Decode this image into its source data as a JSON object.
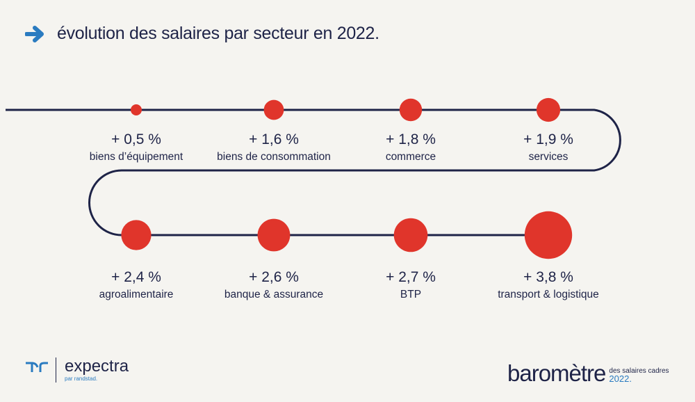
{
  "chart_data": {
    "type": "bubble-timeline",
    "title": "évolution des salaires par secteur en 2022.",
    "unit": "%",
    "categories": [
      "biens d’équipement",
      "biens de consommation",
      "commerce",
      "services",
      "agroalimentaire",
      "banque & assurance",
      "BTP",
      "transport & logistique"
    ],
    "values": [
      0.5,
      1.6,
      1.8,
      1.9,
      2.4,
      2.6,
      2.7,
      3.8
    ],
    "labels": [
      "+ 0,5 %",
      "+ 1,6 %",
      "+ 1,8 %",
      "+ 1,9 %",
      "+ 2,4 %",
      "+ 2,6 %",
      "+ 2,7 %",
      "+ 3,8 %"
    ]
  },
  "colors": {
    "bubble": "#e0352b",
    "path": "#1e2347",
    "background": "#f5f4f0",
    "accent": "#2a7bc0"
  },
  "header": {
    "icon": "arrow-right-icon"
  },
  "footer": {
    "left_logo": {
      "brand": "expectra",
      "sub": "par randstad."
    },
    "right_logo": {
      "main": "baromètre",
      "line1": "des salaires cadres",
      "line2": "2022."
    }
  }
}
